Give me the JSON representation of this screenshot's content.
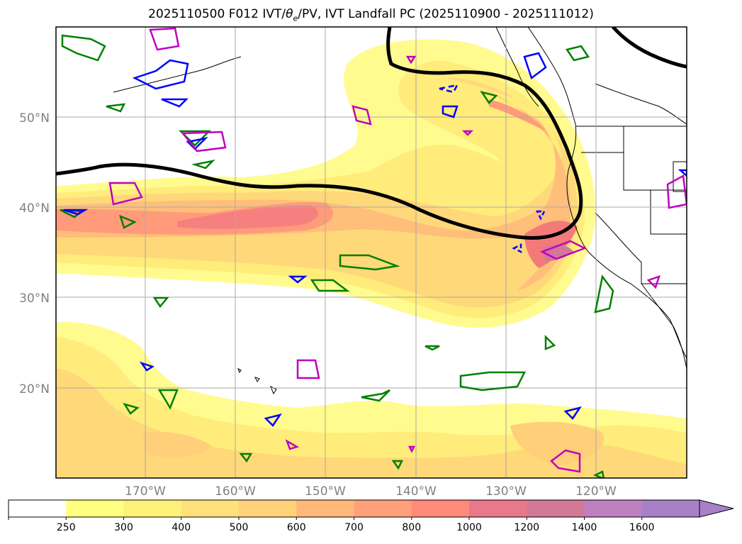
{
  "title": {
    "prefix": "2025110500 F012 IVT/",
    "theta": "θ",
    "theta_sub": "e",
    "suffix": "/PV, IVT Landfall PC (2025110900 - 2025111012)"
  },
  "map": {
    "lat_labels": [
      "50°N",
      "40°N",
      "30°N",
      "20°N"
    ],
    "lon_labels": [
      "170°W",
      "160°W",
      "150°W",
      "140°W",
      "130°W",
      "120°W"
    ]
  },
  "colorbar": {
    "ticks": [
      "250",
      "300",
      "400",
      "500",
      "600",
      "700",
      "800",
      "1000",
      "1200",
      "1400",
      "1600"
    ],
    "colors": [
      "#ffffff",
      "#ffff80",
      "#fff07a",
      "#ffe07a",
      "#ffd27a",
      "#ffb87a",
      "#ffa07a",
      "#ff8a7a",
      "#e8788a",
      "#d27898",
      "#be80be",
      "#a880c8"
    ]
  },
  "colors": {
    "contour_black": "#000000",
    "contour_blue": "#0000ff",
    "contour_green": "#008000",
    "contour_magenta": "#c000c0",
    "grid": "#aaaaaa",
    "coast": "#000000"
  }
}
